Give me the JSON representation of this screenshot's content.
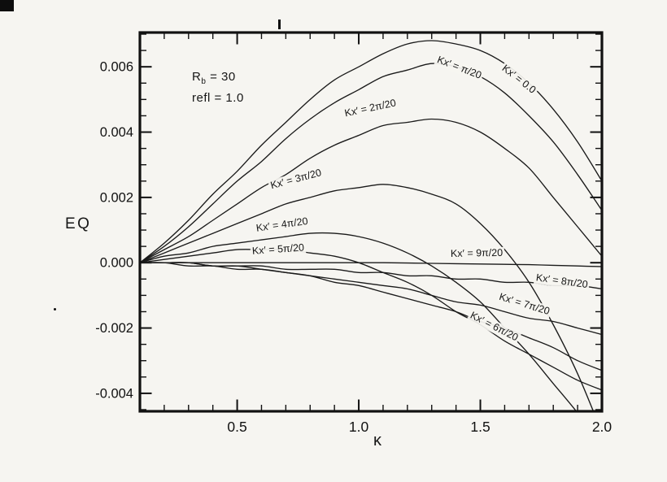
{
  "figure": {
    "background_color": "#f6f5f1",
    "frame_color": "#111111",
    "curve_color": "#1a1a1a"
  },
  "annotations": {
    "rb": {
      "base": "R",
      "sub": "b",
      "rest": " = 30"
    },
    "refl": "refl = 1.0"
  },
  "chart_data": {
    "type": "line",
    "title": "",
    "xlabel": "κ",
    "ylabel": "EQ",
    "xlim": [
      0.1,
      2.0
    ],
    "ylim": [
      -0.00455,
      0.00705
    ],
    "grid": false,
    "legend": "labels drawn along curves",
    "x_major_ticks": [
      0.5,
      1.0,
      1.5,
      2.0
    ],
    "x_tick_labels": [
      "0.5",
      "1.0",
      "1.5",
      "2.0"
    ],
    "x_minor_step": 0.1,
    "y_major_ticks": [
      -0.004,
      -0.002,
      0,
      0.002,
      0.004,
      0.006
    ],
    "y_tick_labels": [
      "-0.004",
      "-0.002",
      "0.000",
      "0.002",
      "0.004",
      "0.006"
    ],
    "y_minor_step": 0.0005,
    "x": [
      0.1,
      0.2,
      0.3,
      0.4,
      0.5,
      0.6,
      0.7,
      0.8,
      0.9,
      1.0,
      1.1,
      1.2,
      1.3,
      1.4,
      1.5,
      1.6,
      1.7,
      1.8,
      1.9,
      2.0
    ],
    "series": [
      {
        "name": "kx-0",
        "label": "Kx′ = 0.0",
        "values": [
          0.0,
          0.0006,
          0.0013,
          0.0021,
          0.0028,
          0.0036,
          0.0043,
          0.005,
          0.0056,
          0.006,
          0.0064,
          0.0067,
          0.0068,
          0.0067,
          0.0065,
          0.0061,
          0.0055,
          0.0047,
          0.0037,
          0.0025
        ]
      },
      {
        "name": "kx-1",
        "label": "Kx′ = π/20",
        "values": [
          0.0,
          0.0005,
          0.0011,
          0.0018,
          0.0025,
          0.0031,
          0.0038,
          0.0044,
          0.0049,
          0.0053,
          0.0057,
          0.0059,
          0.0061,
          0.006,
          0.0057,
          0.0052,
          0.0045,
          0.0037,
          0.0027,
          0.0016
        ]
      },
      {
        "name": "kx-2",
        "label": "Kx′ = 2π/20",
        "values": [
          0.0,
          0.0004,
          0.0008,
          0.0013,
          0.0018,
          0.0023,
          0.0027,
          0.0032,
          0.0036,
          0.0039,
          0.0042,
          0.0043,
          0.0044,
          0.0043,
          0.004,
          0.0035,
          0.0029,
          0.002,
          0.0011,
          0.0002
        ]
      },
      {
        "name": "kx-3",
        "label": "Kx′ = 3π/20",
        "values": [
          0.0,
          0.0003,
          0.0006,
          0.0009,
          0.0012,
          0.0015,
          0.0018,
          0.002,
          0.0022,
          0.0023,
          0.0024,
          0.0023,
          0.0021,
          0.0018,
          0.0012,
          0.0004,
          -0.0006,
          -0.0019,
          -0.0034,
          -0.0052
        ]
      },
      {
        "name": "kx-4",
        "label": "Kx′ = 4π/20",
        "values": [
          0.0,
          0.0002,
          0.0003,
          0.0005,
          0.0006,
          0.0007,
          0.0008,
          0.0009,
          0.0009,
          0.0008,
          0.0006,
          0.0003,
          -0.0001,
          -0.0006,
          -0.0012,
          -0.002,
          -0.0028,
          -0.0037,
          -0.0046,
          -0.0056
        ]
      },
      {
        "name": "kx-5",
        "label": "Kx′ = 5π/20",
        "values": [
          0.0,
          0.0001,
          0.0002,
          0.0003,
          0.0004,
          0.0004,
          0.0004,
          0.0003,
          0.0002,
          0.0,
          -0.0003,
          -0.0006,
          -0.001,
          -0.0015,
          -0.0019,
          -0.0024,
          -0.0028,
          -0.0032,
          -0.0036,
          -0.0039
        ]
      },
      {
        "name": "kx-6",
        "label": "Kx′ = 6π/20",
        "values": [
          0.0,
          0.0,
          0.0,
          -0.0001,
          -0.0001,
          -0.0002,
          -0.0003,
          -0.0004,
          -0.0006,
          -0.0007,
          -0.0009,
          -0.0011,
          -0.0013,
          -0.0015,
          -0.0018,
          -0.002,
          -0.0023,
          -0.0026,
          -0.003,
          -0.0033
        ]
      },
      {
        "name": "kx-7",
        "label": "Kx′ = 7π/20",
        "values": [
          0.0,
          0.0,
          -0.0001,
          -0.0001,
          -0.0002,
          -0.0002,
          -0.0003,
          -0.0004,
          -0.0005,
          -0.0006,
          -0.0007,
          -0.0008,
          -0.001,
          -0.0012,
          -0.0013,
          -0.0015,
          -0.0017,
          -0.0018,
          -0.002,
          -0.0022
        ]
      },
      {
        "name": "kx-8",
        "label": "Kx′ = 8π/20",
        "values": [
          0.0,
          0.0,
          0.0,
          -0.0001,
          -0.0001,
          -0.0001,
          -0.0002,
          -0.0002,
          -0.0002,
          -0.0003,
          -0.0003,
          -0.0004,
          -0.0004,
          -0.0005,
          -0.0005,
          -0.0006,
          -0.0006,
          -0.0007,
          -0.0007,
          -0.0008
        ]
      },
      {
        "name": "kx-9",
        "label": "Kx′ = 9π/20",
        "values": [
          0.0,
          0.0,
          0.0,
          0.0,
          0.0,
          0.0,
          0.0,
          0.0,
          0.0,
          0.0,
          0.0,
          -1e-05,
          -2e-05,
          -3e-05,
          -4e-05,
          -5e-05,
          -6e-05,
          -8e-05,
          -0.0001,
          -0.00012
        ]
      }
    ]
  }
}
